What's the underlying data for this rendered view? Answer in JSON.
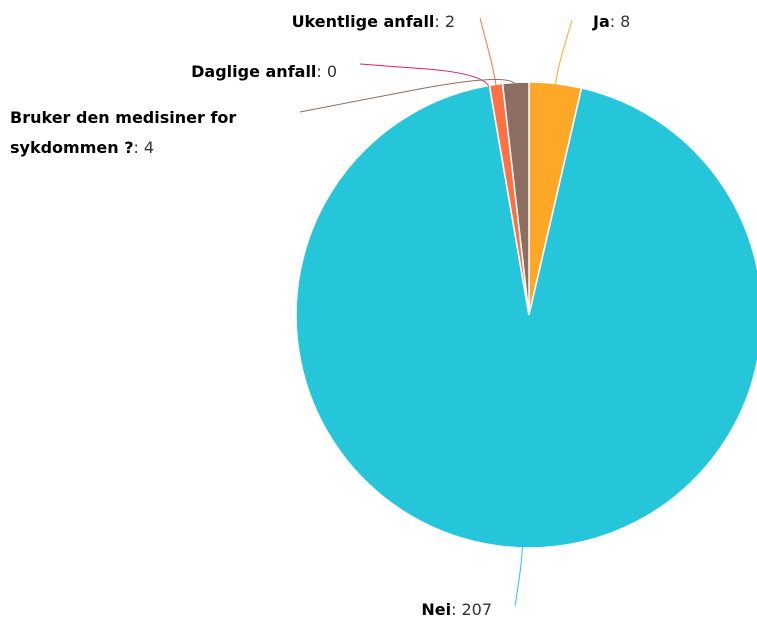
{
  "chart_data": {
    "type": "pie",
    "categories": [
      "Ja",
      "Nei",
      "Daglige anfall",
      "Ukentlige anfall",
      "Bruker den medisiner for sykdommen ?"
    ],
    "values": [
      8,
      207,
      0,
      2,
      4
    ],
    "colors": [
      "#ffa726",
      "#26c6da",
      "#e91e63",
      "#ff7043",
      "#8d6e63"
    ]
  }
}
